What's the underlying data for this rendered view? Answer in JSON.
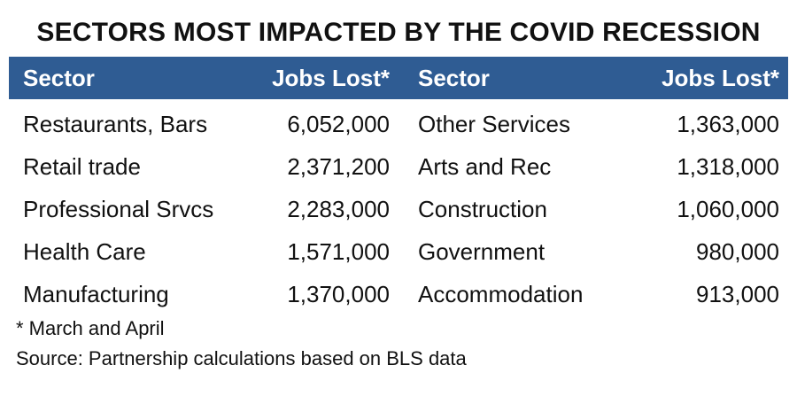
{
  "title": "SECTORS MOST IMPACTED BY THE COVID RECESSION",
  "table": {
    "columns": [
      "Sector",
      "Jobs Lost*",
      "Sector",
      "Jobs Lost*"
    ],
    "rows": [
      [
        "Restaurants, Bars",
        "6,052,000",
        "Other Services",
        "1,363,000"
      ],
      [
        "Retail trade",
        "2,371,200",
        "Arts and Rec",
        "1,318,000"
      ],
      [
        "Professional Srvcs",
        "2,283,000",
        "Construction",
        "1,060,000"
      ],
      [
        "Health Care",
        "1,571,000",
        "Government",
        "980,000"
      ],
      [
        "Manufacturing",
        "1,370,000",
        "Accommodation",
        "913,000"
      ]
    ]
  },
  "footnote": "* March and April",
  "source": "Source: Partnership calculations based on BLS data",
  "colors": {
    "header_bg": "#2f5c93",
    "header_text": "#ffffff",
    "body_text": "#111111"
  },
  "chart_data": {
    "type": "table",
    "title": "SECTORS MOST IMPACTED BY THE COVID RECESSION",
    "columns": [
      "Sector",
      "Jobs Lost*"
    ],
    "rows": [
      [
        "Restaurants, Bars",
        6052000
      ],
      [
        "Retail trade",
        2371200
      ],
      [
        "Professional Srvcs",
        2283000
      ],
      [
        "Health Care",
        1571000
      ],
      [
        "Manufacturing",
        1370000
      ],
      [
        "Other Services",
        1363000
      ],
      [
        "Arts and Rec",
        1318000
      ],
      [
        "Construction",
        1060000
      ],
      [
        "Government",
        980000
      ],
      [
        "Accommodation",
        913000
      ]
    ]
  }
}
